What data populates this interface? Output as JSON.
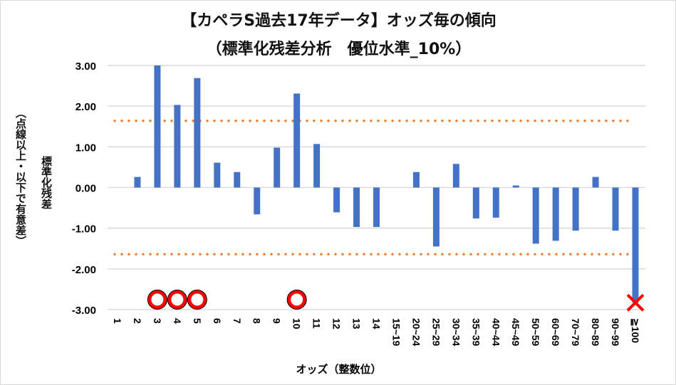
{
  "chart_data": {
    "type": "bar",
    "title": "【カペラS過去17年データ】オッズ毎の傾向",
    "subtitle": "（標準化残差分析　優位水準_10%）",
    "xlabel": "オッズ（整数位）",
    "ylabel": "標準化残差",
    "ylabel_note": "（点線以上・以下で有意差）",
    "ylim": [
      -3,
      3
    ],
    "yticks": [
      "3.00",
      "2.00",
      "1.00",
      "0.00",
      "-1.00",
      "-2.00",
      "-3.00"
    ],
    "ytick_values": [
      3,
      2,
      1,
      0,
      -1,
      -2,
      -3
    ],
    "categories": [
      "1",
      "2",
      "3",
      "4",
      "5",
      "6",
      "7",
      "8",
      "9",
      "10",
      "11",
      "12",
      "13",
      "14",
      "15~19",
      "20~24",
      "25~29",
      "30~34",
      "35~39",
      "40~44",
      "45~49",
      "50~59",
      "60~69",
      "70~79",
      "80~89",
      "90~99",
      "≧100"
    ],
    "values": [
      0,
      0.26,
      3.0,
      2.03,
      2.69,
      0.61,
      0.38,
      -0.66,
      0.98,
      2.31,
      1.07,
      -0.61,
      -0.97,
      -0.97,
      0,
      0.38,
      -1.45,
      0.58,
      -0.76,
      -0.74,
      0.05,
      -1.38,
      -1.31,
      -1.06,
      0.26,
      -1.06,
      -2.83
    ],
    "thresholds": [
      1.64,
      -1.64
    ],
    "markers": {
      "circle": [
        "3",
        "4",
        "5",
        "10"
      ],
      "cross": [
        "≧100"
      ]
    },
    "grid": true,
    "colors": {
      "bar": "#4472c4",
      "threshold": "#ed7d31",
      "marker": "#ff0000",
      "grid": "#d9d9d9"
    }
  }
}
